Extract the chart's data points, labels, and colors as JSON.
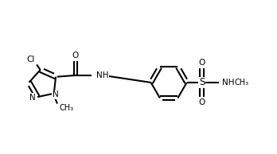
{
  "background_color": "#ffffff",
  "line_color": "#000000",
  "line_width": 1.5,
  "font_size": 7.5,
  "figsize": [
    3.48,
    1.94
  ],
  "dpi": 100,
  "xlim": [
    0,
    10
  ],
  "ylim": [
    0,
    5.5
  ]
}
